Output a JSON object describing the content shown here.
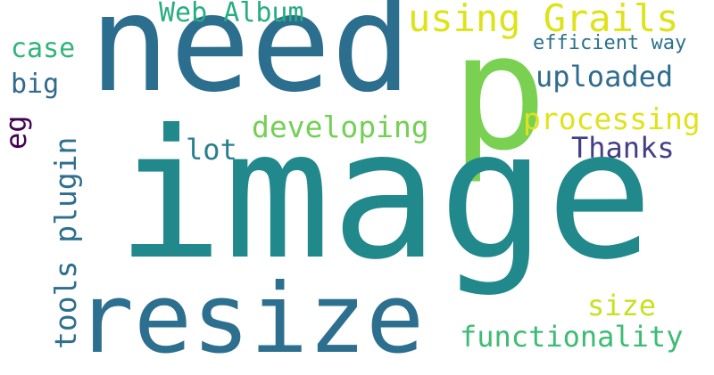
{
  "words": {
    "image": "image",
    "need": "need",
    "p": "p",
    "resize": "resize",
    "using_grails": "using Grails",
    "web_album": "Web Album",
    "case": "case",
    "big": "big",
    "efficient_way": "efficient way",
    "uploaded": "uploaded",
    "developing": "developing",
    "processing": "processing",
    "thanks": "Thanks",
    "lot": "lot",
    "eg": "eg",
    "tools_plugin": "tools plugin",
    "size": "size",
    "functionality": "functionality"
  },
  "colors": {
    "image": "#21898c",
    "need": "#2c6e8e",
    "p": "#7ad151",
    "resize": "#2d6f8e",
    "using_grails": "#dde318",
    "web_album": "#27ad81",
    "case": "#31b57b",
    "big": "#306a8e",
    "efficient_way": "#2c718e",
    "uploaded": "#2f6b8e",
    "developing": "#74d055",
    "processing": "#e1e21a",
    "thanks": "#433e85",
    "lot": "#27808e",
    "eg": "#440154",
    "tools_plugin": "#2e6f8e",
    "size": "#c9e020",
    "functionality": "#3dbc74"
  }
}
